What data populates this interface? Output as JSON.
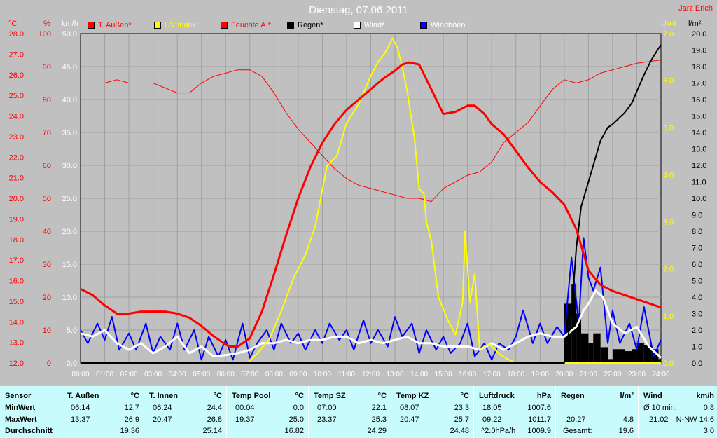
{
  "title": "Dienstag, 07.06.2011",
  "author": "Jarz Erich",
  "colors": {
    "background": "#c0c0c0",
    "plot": "#c0c0c0",
    "grid": "#a0a0a0",
    "temp": "#ff0000",
    "uv": "#ffff00",
    "humidity": "#ff0000",
    "rain": "#000000",
    "wind": "#ffffff",
    "gust": "#0000ff",
    "table": "#c8fbfb"
  },
  "legend": [
    {
      "name": "T. Außen*",
      "color": "#ff0000"
    },
    {
      "name": "UV Index",
      "color": "#ffff00"
    },
    {
      "name": "Feuchte A.*",
      "color": "#ff0000"
    },
    {
      "name": "Regen*",
      "color": "#000000"
    },
    {
      "name": "Wind*",
      "color": "#ffffff"
    },
    {
      "name": "Windböen",
      "color": "#0000ff"
    }
  ],
  "axes": {
    "temp": {
      "unit": "°C",
      "min": 12.0,
      "max": 28.0,
      "ticks": [
        "12.0",
        "13.0",
        "14.0",
        "15.0",
        "16.0",
        "17.0",
        "18.0",
        "19.0",
        "20.0",
        "21.0",
        "22.0",
        "23.0",
        "24.0",
        "25.0",
        "26.0",
        "27.0",
        "28.0"
      ]
    },
    "hum": {
      "unit": "%",
      "min": 0,
      "max": 100,
      "ticks": [
        "0",
        "10",
        "20",
        "30",
        "40",
        "50",
        "60",
        "70",
        "80",
        "90",
        "100"
      ]
    },
    "wind": {
      "unit": "km/h",
      "min": 0,
      "max": 50,
      "ticks": [
        "0.0",
        "5.0",
        "10.0",
        "15.0",
        "20.0",
        "25.0",
        "30.0",
        "35.0",
        "40.0",
        "45.0",
        "50.0"
      ]
    },
    "uv": {
      "unit": "UV-I",
      "min": 0,
      "max": 7,
      "ticks": [
        "0.0",
        "1.0",
        "2.0",
        "3.0",
        "4.0",
        "5.0",
        "6.0",
        "7.0"
      ]
    },
    "rain": {
      "unit": "l/m²",
      "min": 0,
      "max": 20,
      "ticks": [
        "0.0",
        "1.0",
        "2.0",
        "3.0",
        "4.0",
        "5.0",
        "6.0",
        "7.0",
        "8.0",
        "9.0",
        "10.0",
        "11.0",
        "12.0",
        "13.0",
        "14.0",
        "15.0",
        "16.0",
        "17.0",
        "18.0",
        "19.0",
        "20.0"
      ]
    },
    "x": {
      "min": 0,
      "max": 24,
      "ticks": [
        "00:00",
        "01:00",
        "02:00",
        "03:00",
        "04:00",
        "05:00",
        "06:00",
        "07:00",
        "08:00",
        "09:00",
        "10:00",
        "11:00",
        "12:00",
        "13:00",
        "14:00",
        "15:00",
        "16:00",
        "17:00",
        "18:00",
        "19:00",
        "20:00",
        "21:00",
        "22:00",
        "23:00",
        "24:00"
      ]
    }
  },
  "chart_data": {
    "type": "line",
    "title": "Dienstag, 07.06.2011",
    "x_unit": "hours",
    "grid": true,
    "series": [
      {
        "name": "T. Außen*",
        "axis": "temp",
        "x": [
          0,
          0.5,
          1,
          1.5,
          2,
          2.5,
          3,
          3.5,
          4,
          4.5,
          5,
          5.5,
          6,
          6.2,
          6.5,
          7,
          7.5,
          8,
          8.5,
          9,
          9.5,
          10,
          10.5,
          11,
          11.5,
          12,
          12.5,
          13,
          13.3,
          13.6,
          14,
          14.5,
          15,
          15.5,
          16,
          16.3,
          16.7,
          17,
          17.5,
          18,
          18.5,
          19,
          19.5,
          20,
          20.5,
          21,
          21.5,
          22,
          22.5,
          23,
          23.5,
          24
        ],
        "values": [
          15.6,
          15.3,
          14.8,
          14.4,
          14.4,
          14.5,
          14.5,
          14.5,
          14.4,
          14.2,
          13.8,
          13.3,
          12.9,
          12.8,
          12.8,
          13.2,
          14.5,
          16.3,
          18.2,
          20.0,
          21.5,
          22.7,
          23.6,
          24.3,
          24.8,
          25.3,
          25.8,
          26.2,
          26.5,
          26.6,
          26.5,
          25.3,
          24.1,
          24.2,
          24.5,
          24.5,
          24.1,
          23.6,
          23.1,
          22.3,
          21.5,
          20.8,
          20.3,
          19.7,
          18.5,
          16.5,
          15.8,
          15.5,
          15.3,
          15.1,
          14.9,
          14.7
        ]
      },
      {
        "name": "UV Index",
        "axis": "uv",
        "x": [
          0,
          6.9,
          7.3,
          7.8,
          8.3,
          8.8,
          9.3,
          9.7,
          10.2,
          10.6,
          11.0,
          11.5,
          12.0,
          12.3,
          12.6,
          12.9,
          13.1,
          13.3,
          13.5,
          13.8,
          14.0,
          14.2,
          14.3,
          14.5,
          14.8,
          15.2,
          15.5,
          15.8,
          15.9,
          16.1,
          16.3,
          16.5,
          16.9,
          17.3,
          17.6,
          18.0,
          24
        ],
        "values": [
          0,
          0,
          0.2,
          0.5,
          1.1,
          1.8,
          2.3,
          2.9,
          4.2,
          4.4,
          5.1,
          5.5,
          6.1,
          6.4,
          6.6,
          6.9,
          6.7,
          6.3,
          5.8,
          4.8,
          3.7,
          3.6,
          3.0,
          2.6,
          1.4,
          0.9,
          0.6,
          1.3,
          2.8,
          1.3,
          1.9,
          0.3,
          0.4,
          0.2,
          0.1,
          0,
          0
        ]
      },
      {
        "name": "Feuchte A.*",
        "axis": "hum",
        "x": [
          0,
          1,
          1.5,
          2,
          3,
          4,
          4.5,
          5,
          5.5,
          6,
          6.5,
          7,
          7.5,
          8,
          8.5,
          9,
          9.5,
          10,
          10.5,
          11,
          11.5,
          12,
          12.5,
          13,
          13.5,
          14,
          14.5,
          15,
          15.5,
          16,
          16.5,
          17,
          17.5,
          18,
          18.5,
          19,
          19.5,
          20,
          20.5,
          21,
          21.5,
          22,
          22.5,
          23,
          24
        ],
        "values": [
          85,
          85,
          86,
          85,
          85,
          82,
          82,
          85,
          87,
          88,
          89,
          89,
          87,
          82,
          76,
          71,
          67,
          63,
          59,
          56,
          54,
          53,
          52,
          51,
          50,
          50,
          49,
          53,
          55,
          57,
          58,
          61,
          67,
          70,
          73,
          78,
          83,
          86,
          85,
          86,
          88,
          89,
          90,
          91,
          92
        ]
      },
      {
        "name": "Regen*",
        "axis": "rain",
        "x": [
          0,
          20.0,
          20.3,
          20.5,
          20.7,
          21.0,
          21.2,
          21.5,
          21.8,
          22.0,
          22.5,
          22.8,
          23.0,
          23.3,
          23.6,
          23.9,
          24.0
        ],
        "values": [
          0,
          0,
          3.0,
          7.0,
          9.5,
          11.0,
          12.0,
          13.5,
          14.3,
          14.5,
          15.2,
          15.8,
          16.5,
          17.5,
          18.4,
          19.1,
          19.3
        ]
      },
      {
        "name": "Wind*",
        "axis": "wind",
        "x": [
          0,
          0.5,
          1,
          1.5,
          2,
          2.5,
          3,
          3.5,
          4,
          4.5,
          5,
          5.5,
          6,
          6.5,
          7,
          7.5,
          8,
          8.5,
          9,
          9.5,
          10,
          10.5,
          11,
          11.5,
          12,
          12.5,
          13,
          13.5,
          14,
          14.5,
          15,
          15.5,
          16,
          16.5,
          17,
          17.5,
          18,
          18.5,
          19,
          19.5,
          20,
          20.5,
          20.8,
          21,
          21.3,
          21.6,
          22,
          22.5,
          23,
          23.5,
          24
        ],
        "values": [
          4.5,
          4.0,
          5.0,
          3.0,
          2.0,
          3.0,
          1.5,
          2.5,
          4.0,
          1.5,
          2.5,
          1.0,
          1.2,
          1.5,
          2.0,
          3.0,
          3.0,
          3.5,
          3.0,
          3.5,
          3.5,
          4.0,
          4.0,
          3.0,
          3.5,
          3.0,
          3.5,
          4.0,
          3.0,
          3.0,
          2.5,
          2.5,
          2.5,
          2.0,
          3.0,
          2.0,
          3.0,
          4.0,
          4.5,
          4.0,
          4.0,
          5.5,
          8.0,
          9.0,
          11.0,
          10.0,
          6.0,
          4.5,
          5.5,
          2.5,
          0.8
        ]
      },
      {
        "name": "Windböen",
        "axis": "wind",
        "x": [
          0,
          0.3,
          0.7,
          1.0,
          1.3,
          1.6,
          2.0,
          2.3,
          2.7,
          3.0,
          3.3,
          3.7,
          4.0,
          4.3,
          4.7,
          5.0,
          5.3,
          5.7,
          6.0,
          6.3,
          6.7,
          7.0,
          7.3,
          7.7,
          8.0,
          8.3,
          8.7,
          9.0,
          9.3,
          9.7,
          10.0,
          10.3,
          10.7,
          11.0,
          11.3,
          11.7,
          12.0,
          12.3,
          12.7,
          13.0,
          13.3,
          13.7,
          14.0,
          14.3,
          14.7,
          15.0,
          15.3,
          15.7,
          16.0,
          16.3,
          16.7,
          17.0,
          17.3,
          17.7,
          18.0,
          18.3,
          18.7,
          19.0,
          19.3,
          19.7,
          20.0,
          20.3,
          20.6,
          20.8,
          21.0,
          21.2,
          21.5,
          21.8,
          22.0,
          22.3,
          22.7,
          23.0,
          23.3,
          23.7,
          24.0
        ],
        "values": [
          5.0,
          3.0,
          6.0,
          3.5,
          7.0,
          2.0,
          4.5,
          2.0,
          6.0,
          1.5,
          4.0,
          2.0,
          6.0,
          2.0,
          5.0,
          0.5,
          4.0,
          1.0,
          3.5,
          0.5,
          6.0,
          0.8,
          3.0,
          5.0,
          2.0,
          6.0,
          3.0,
          4.5,
          2.0,
          5.0,
          3.0,
          6.0,
          3.5,
          5.0,
          2.0,
          6.5,
          3.0,
          5.0,
          2.5,
          7.0,
          4.0,
          6.0,
          1.5,
          5.0,
          2.0,
          4.0,
          1.5,
          3.0,
          6.0,
          1.0,
          3.0,
          0.5,
          3.0,
          2.0,
          4.0,
          8.0,
          3.0,
          6.0,
          3.0,
          5.5,
          4.0,
          16.0,
          6.0,
          19.0,
          13.0,
          11.0,
          14.5,
          3.0,
          8.0,
          3.0,
          6.0,
          2.0,
          8.5,
          1.0,
          3.5
        ]
      }
    ]
  },
  "table": {
    "row_labels": [
      "Sensor",
      "MinWert",
      "MaxWert",
      "Durchschnitt"
    ],
    "columns": [
      {
        "name": "T. Außen",
        "unit": "°C",
        "min_time": "06:14",
        "min": "12.7",
        "max_time": "13:37",
        "max": "26.9",
        "avg": "19.36"
      },
      {
        "name": "T. Innen",
        "unit": "°C",
        "min_time": "06:24",
        "min": "24.4",
        "max_time": "20:47",
        "max": "26.8",
        "avg": "25.14"
      },
      {
        "name": "Temp Pool",
        "unit": "°C",
        "min_time": "00:04",
        "min": "0.0",
        "max_time": "19:37",
        "max": "25.0",
        "avg": "16.82"
      },
      {
        "name": "Temp SZ",
        "unit": "°C",
        "min_time": "07:00",
        "min": "22.1",
        "max_time": "23:37",
        "max": "25.3",
        "avg": "24.29"
      },
      {
        "name": "Temp KZ",
        "unit": "°C",
        "min_time": "08:07",
        "min": "23.3",
        "max_time": "20:47",
        "max": "25.7",
        "avg": "24.48"
      },
      {
        "name": "Luftdruck",
        "unit": "hPa",
        "min_time": "18:05",
        "min": "1007.6",
        "max_time": "09:22",
        "max": "1011.7",
        "avg_label": "^2.0hPa/h",
        "avg": "1009.9"
      },
      {
        "name": "Regen",
        "unit": "l/m²",
        "min_time": "",
        "min": "",
        "max_time": "20:27",
        "max": "4.8",
        "avg_label": "Gesamt:",
        "avg": "19.6"
      },
      {
        "name": "Wind",
        "unit": "km/h",
        "min_time": "Ø 10 min.",
        "min": "0.8",
        "max_time": "21:02",
        "max": "N-NW 14.6",
        "avg": "3.0"
      }
    ]
  }
}
